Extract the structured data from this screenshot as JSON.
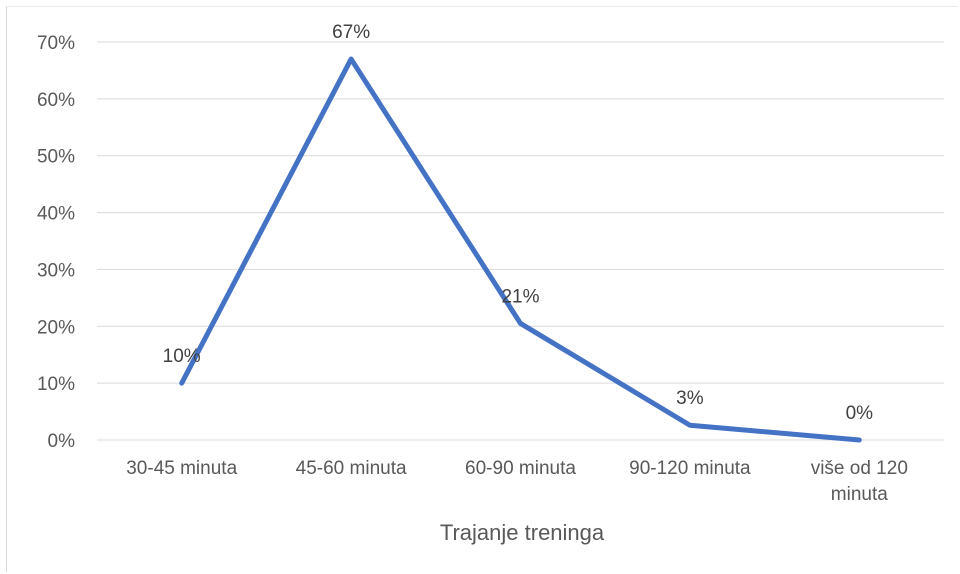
{
  "chart_data": {
    "type": "line",
    "categories": [
      [
        "30-45 minuta"
      ],
      [
        "45-60 minuta"
      ],
      [
        "60-90 minuta"
      ],
      [
        "90-120 minuta"
      ],
      [
        "više od 120",
        "minuta"
      ]
    ],
    "series": [
      {
        "values": [
          0.1,
          0.67,
          0.205,
          0.026,
          0.0
        ],
        "labels": [
          "10%",
          "67%",
          "21%",
          "3%",
          "0%"
        ],
        "color": "#4472c4"
      }
    ],
    "xlabel": "Trajanje treninga",
    "ylabel": "",
    "ylim": [
      0,
      0.7
    ],
    "yticks": [
      {
        "value": 0.0,
        "label": "0%"
      },
      {
        "value": 0.1,
        "label": "10%"
      },
      {
        "value": 0.2,
        "label": "20%"
      },
      {
        "value": 0.3,
        "label": "30%"
      },
      {
        "value": 0.4,
        "label": "40%"
      },
      {
        "value": 0.5,
        "label": "50%"
      },
      {
        "value": 0.6,
        "label": "60%"
      },
      {
        "value": 0.7,
        "label": "70%"
      }
    ],
    "grid": true,
    "legend": "none"
  }
}
